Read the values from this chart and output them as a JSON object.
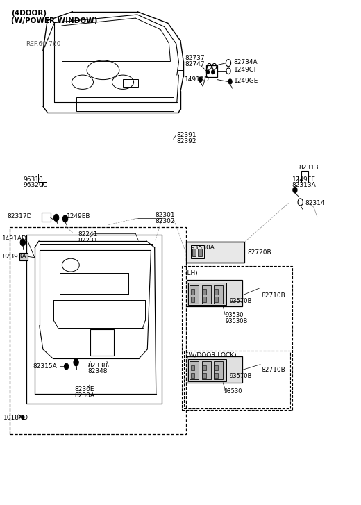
{
  "bg_color": "#ffffff",
  "line_color": "#000000",
  "text_color": "#000000",
  "title_line1": "(4DOOR)",
  "title_line2": "(W/POWER WINDOW)",
  "ref_text": "REF.60-760"
}
